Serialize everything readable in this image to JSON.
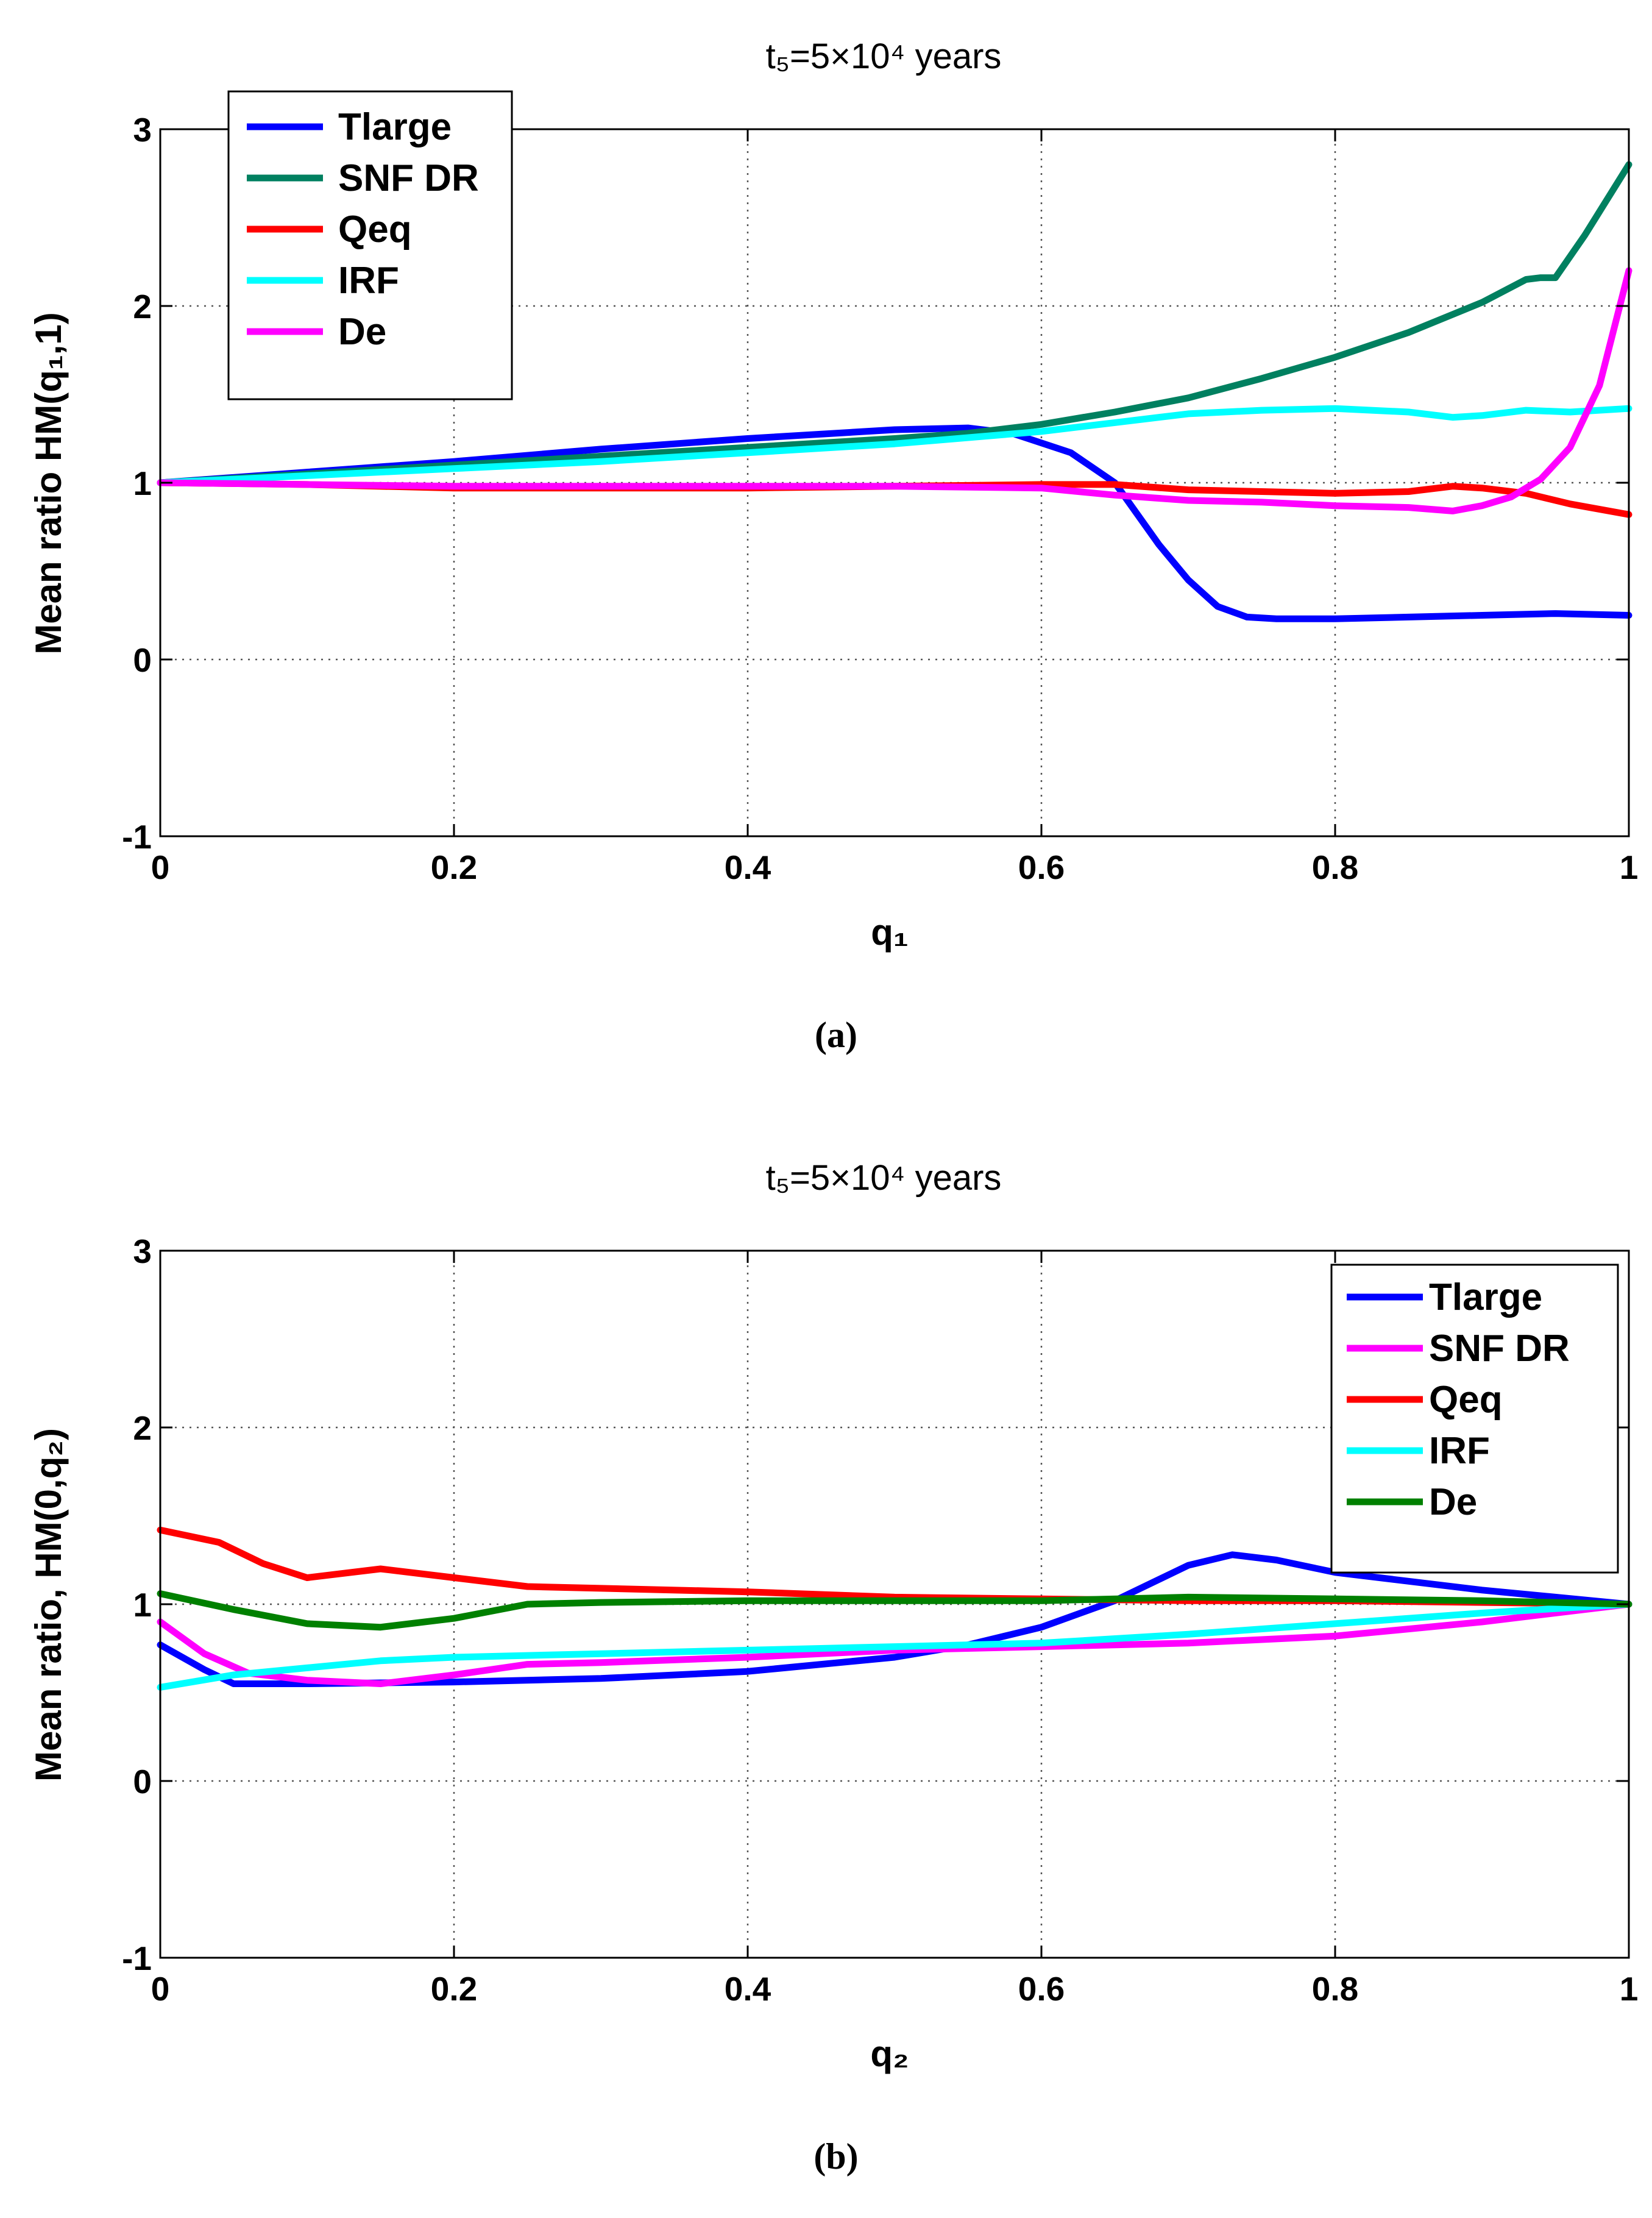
{
  "chart_data": [
    {
      "type": "line",
      "title": "t₅=5×10⁴ years",
      "xlabel": "q₁",
      "ylabel": "Mean ratio HM(q₁,1)",
      "caption": "(a)",
      "xlim": [
        0,
        1
      ],
      "ylim": [
        -1,
        3
      ],
      "xticks": [
        "0",
        "0.2",
        "0.4",
        "0.6",
        "0.8",
        "1"
      ],
      "yticks": [
        "-1",
        "0",
        "1",
        "2",
        "3"
      ],
      "grid": true,
      "legend_position": "top-left",
      "series": [
        {
          "name": "Tlarge",
          "color": "#0000ff",
          "x": [
            0,
            0.1,
            0.2,
            0.3,
            0.4,
            0.5,
            0.55,
            0.58,
            0.62,
            0.65,
            0.68,
            0.7,
            0.72,
            0.74,
            0.76,
            0.8,
            0.9,
            0.95,
            1.0
          ],
          "y": [
            1.0,
            1.06,
            1.12,
            1.19,
            1.25,
            1.3,
            1.31,
            1.28,
            1.17,
            1.0,
            0.65,
            0.45,
            0.3,
            0.24,
            0.23,
            0.23,
            0.25,
            0.26,
            0.25
          ]
        },
        {
          "name": "SNF DR",
          "color": "#008060",
          "x": [
            0,
            0.1,
            0.2,
            0.3,
            0.4,
            0.5,
            0.55,
            0.6,
            0.65,
            0.7,
            0.75,
            0.8,
            0.85,
            0.9,
            0.93,
            0.94,
            0.95,
            0.97,
            1.0
          ],
          "y": [
            1.0,
            1.05,
            1.1,
            1.15,
            1.2,
            1.25,
            1.28,
            1.33,
            1.4,
            1.48,
            1.59,
            1.71,
            1.85,
            2.02,
            2.15,
            2.16,
            2.16,
            2.4,
            2.8
          ]
        },
        {
          "name": "Qeq",
          "color": "#ff0000",
          "x": [
            0,
            0.1,
            0.2,
            0.3,
            0.4,
            0.5,
            0.6,
            0.65,
            0.7,
            0.75,
            0.8,
            0.85,
            0.88,
            0.9,
            0.93,
            0.96,
            1.0
          ],
          "y": [
            1.0,
            0.99,
            0.97,
            0.97,
            0.97,
            0.98,
            0.99,
            0.99,
            0.96,
            0.95,
            0.94,
            0.95,
            0.98,
            0.97,
            0.94,
            0.88,
            0.82
          ]
        },
        {
          "name": "IRF",
          "color": "#00ffff",
          "x": [
            0,
            0.1,
            0.2,
            0.3,
            0.4,
            0.5,
            0.6,
            0.65,
            0.7,
            0.75,
            0.8,
            0.85,
            0.88,
            0.9,
            0.93,
            0.96,
            1.0
          ],
          "y": [
            1.0,
            1.04,
            1.08,
            1.12,
            1.17,
            1.22,
            1.29,
            1.34,
            1.39,
            1.41,
            1.42,
            1.4,
            1.37,
            1.38,
            1.41,
            1.4,
            1.42
          ]
        },
        {
          "name": "De",
          "color": "#ff00ff",
          "x": [
            0,
            0.1,
            0.2,
            0.3,
            0.4,
            0.5,
            0.6,
            0.65,
            0.7,
            0.75,
            0.8,
            0.85,
            0.88,
            0.9,
            0.92,
            0.94,
            0.96,
            0.98,
            1.0
          ],
          "y": [
            1.0,
            0.99,
            0.98,
            0.98,
            0.98,
            0.98,
            0.97,
            0.93,
            0.9,
            0.89,
            0.87,
            0.86,
            0.84,
            0.87,
            0.92,
            1.02,
            1.2,
            1.55,
            2.2
          ]
        }
      ]
    },
    {
      "type": "line",
      "title": "t₅=5×10⁴ years",
      "xlabel": "q₂",
      "ylabel": "Mean ratio, HM(0,q₂)",
      "caption": "(b)",
      "xlim": [
        0,
        1
      ],
      "ylim": [
        -1,
        3
      ],
      "xticks": [
        "0",
        "0.2",
        "0.4",
        "0.6",
        "0.8",
        "1"
      ],
      "yticks": [
        "-1",
        "0",
        "1",
        "2",
        "3"
      ],
      "grid": true,
      "legend_position": "top-right",
      "series": [
        {
          "name": "Tlarge",
          "color": "#0000ff",
          "x": [
            0,
            0.03,
            0.05,
            0.07,
            0.1,
            0.2,
            0.3,
            0.4,
            0.5,
            0.55,
            0.6,
            0.65,
            0.7,
            0.73,
            0.76,
            0.8,
            0.9,
            1.0
          ],
          "y": [
            0.77,
            0.63,
            0.55,
            0.55,
            0.55,
            0.56,
            0.58,
            0.62,
            0.7,
            0.77,
            0.87,
            1.02,
            1.22,
            1.28,
            1.25,
            1.18,
            1.08,
            1.0
          ]
        },
        {
          "name": "SNF DR",
          "color": "#ff00ff",
          "x": [
            0,
            0.03,
            0.06,
            0.1,
            0.15,
            0.2,
            0.25,
            0.3,
            0.4,
            0.5,
            0.6,
            0.7,
            0.8,
            0.9,
            1.0
          ],
          "y": [
            0.9,
            0.72,
            0.61,
            0.57,
            0.55,
            0.6,
            0.66,
            0.67,
            0.7,
            0.74,
            0.76,
            0.78,
            0.82,
            0.9,
            1.0
          ]
        },
        {
          "name": "Qeq",
          "color": "#ff0000",
          "x": [
            0,
            0.04,
            0.07,
            0.1,
            0.15,
            0.2,
            0.25,
            0.3,
            0.4,
            0.5,
            0.6,
            0.7,
            0.8,
            0.9,
            1.0
          ],
          "y": [
            1.42,
            1.35,
            1.23,
            1.15,
            1.2,
            1.15,
            1.1,
            1.09,
            1.07,
            1.04,
            1.03,
            1.02,
            1.02,
            1.01,
            1.0
          ]
        },
        {
          "name": "IRF",
          "color": "#00ffff",
          "x": [
            0,
            0.05,
            0.1,
            0.15,
            0.2,
            0.3,
            0.4,
            0.5,
            0.6,
            0.7,
            0.8,
            0.9,
            1.0
          ],
          "y": [
            0.53,
            0.6,
            0.64,
            0.68,
            0.7,
            0.72,
            0.74,
            0.76,
            0.78,
            0.83,
            0.89,
            0.95,
            1.0
          ]
        },
        {
          "name": "De",
          "color": "#008000",
          "x": [
            0,
            0.05,
            0.1,
            0.15,
            0.2,
            0.25,
            0.3,
            0.4,
            0.5,
            0.6,
            0.7,
            0.8,
            0.9,
            1.0
          ],
          "y": [
            1.06,
            0.97,
            0.89,
            0.87,
            0.92,
            1.0,
            1.01,
            1.02,
            1.02,
            1.02,
            1.04,
            1.03,
            1.02,
            1.0
          ]
        }
      ]
    }
  ]
}
